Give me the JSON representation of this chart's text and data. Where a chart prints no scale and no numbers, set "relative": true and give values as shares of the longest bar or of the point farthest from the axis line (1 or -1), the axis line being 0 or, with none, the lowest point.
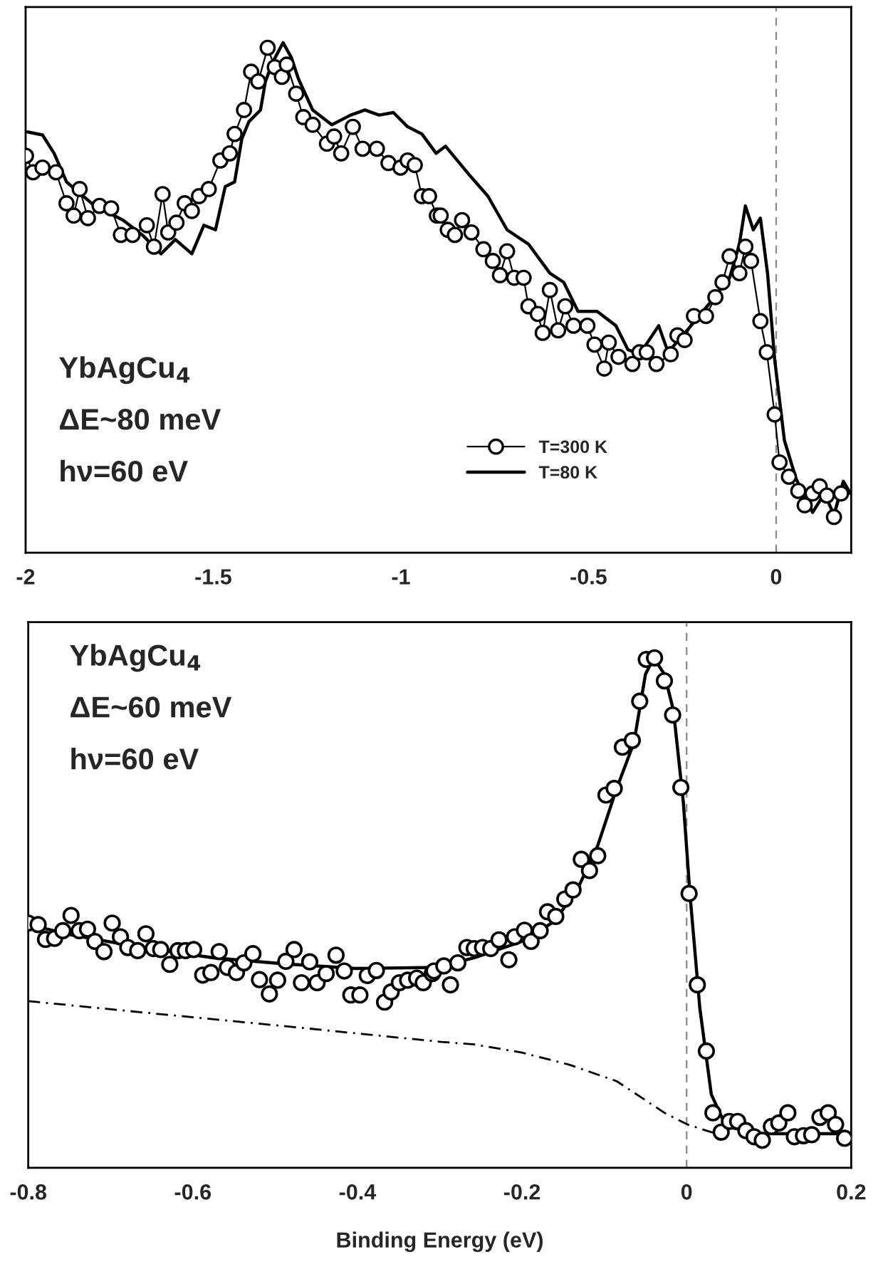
{
  "chart_data": [
    {
      "type": "line",
      "relative": true,
      "xlim": [
        -2,
        0.2
      ],
      "xticks": [
        -2,
        -1.5,
        -1,
        -0.5,
        0
      ],
      "legend": "bottom",
      "annotations": [
        "YbAgCu$_{4}$",
        "ΔE~80 meV",
        "hν=60 eV"
      ],
      "ref_lines": [
        {
          "axis": "x",
          "value": 0,
          "color": "#888888",
          "line_style": "dashed"
        }
      ],
      "series": [
        {
          "name": "T=300 K",
          "color": "#000000",
          "marker": "circle",
          "line_style": "solid",
          "x": [
            -1.999,
            -1.98,
            -1.955,
            -1.919,
            -1.891,
            -1.872,
            -1.856,
            -1.834,
            -1.803,
            -1.772,
            -1.746,
            -1.715,
            -1.677,
            -1.658,
            -1.635,
            -1.62,
            -1.598,
            -1.576,
            -1.557,
            -1.538,
            -1.512,
            -1.481,
            -1.456,
            -1.443,
            -1.418,
            -1.399,
            -1.38,
            -1.355,
            -1.336,
            -1.317,
            -1.304,
            -1.279,
            -1.26,
            -1.235,
            -1.197,
            -1.178,
            -1.159,
            -1.128,
            -1.102,
            -1.064,
            -1.033,
            -1.001,
            -0.982,
            -0.963,
            -0.944,
            -0.925,
            -0.904,
            -0.894,
            -0.875,
            -0.856,
            -0.837,
            -0.812,
            -0.78,
            -0.755,
            -0.736,
            -0.717,
            -0.698,
            -0.673,
            -0.66,
            -0.635,
            -0.622,
            -0.603,
            -0.581,
            -0.562,
            -0.54,
            -0.503,
            -0.484,
            -0.458,
            -0.446,
            -0.42,
            -0.383,
            -0.364,
            -0.345,
            -0.319,
            -0.281,
            -0.263,
            -0.244,
            -0.219,
            -0.187,
            -0.162,
            -0.143,
            -0.124,
            -0.098,
            -0.082,
            -0.067,
            -0.042,
            -0.025,
            -0.004,
            0.009,
            0.034,
            0.059,
            0.076,
            0.097,
            0.116,
            0.135,
            0.154,
            0.173
          ],
          "values": [
            0.778,
            0.746,
            0.755,
            0.746,
            0.685,
            0.661,
            0.713,
            0.656,
            0.68,
            0.675,
            0.623,
            0.623,
            0.642,
            0.6,
            0.703,
            0.628,
            0.647,
            0.685,
            0.67,
            0.699,
            0.713,
            0.769,
            0.783,
            0.821,
            0.868,
            0.943,
            0.924,
            0.99,
            0.952,
            0.933,
            0.957,
            0.9,
            0.854,
            0.839,
            0.802,
            0.816,
            0.783,
            0.835,
            0.792,
            0.792,
            0.764,
            0.755,
            0.769,
            0.76,
            0.699,
            0.699,
            0.661,
            0.661,
            0.633,
            0.623,
            0.652,
            0.628,
            0.595,
            0.572,
            0.544,
            0.591,
            0.539,
            0.539,
            0.483,
            0.468,
            0.431,
            0.515,
            0.436,
            0.483,
            0.445,
            0.445,
            0.408,
            0.361,
            0.412,
            0.384,
            0.37,
            0.393,
            0.393,
            0.37,
            0.389,
            0.426,
            0.417,
            0.464,
            0.464,
            0.501,
            0.53,
            0.581,
            0.548,
            0.6,
            0.572,
            0.454,
            0.393,
            0.271,
            0.177,
            0.149,
            0.121,
            0.093,
            0.116,
            0.13,
            0.112,
            0.07,
            0.116
          ]
        },
        {
          "name": "T=80 K",
          "color": "#000000",
          "marker": "none",
          "line_style": "solid",
          "x": [
            -1.995,
            -1.955,
            -1.924,
            -1.891,
            -1.816,
            -1.74,
            -1.689,
            -1.639,
            -1.601,
            -1.557,
            -1.525,
            -1.494,
            -1.468,
            -1.443,
            -1.424,
            -1.405,
            -1.374,
            -1.361,
            -1.342,
            -1.314,
            -1.292,
            -1.273,
            -1.235,
            -1.184,
            -1.134,
            -1.096,
            -1.058,
            -1.02,
            -0.982,
            -0.944,
            -0.906,
            -0.881,
            -0.818,
            -0.768,
            -0.717,
            -0.66,
            -0.603,
            -0.566,
            -0.528,
            -0.477,
            -0.427,
            -0.395,
            -0.364,
            -0.313,
            -0.288,
            -0.237,
            -0.174,
            -0.124,
            -0.098,
            -0.082,
            -0.061,
            -0.042,
            -0.023,
            -0.004,
            0.022,
            0.053,
            0.097,
            0.129,
            0.154,
            0.179,
            0.198
          ],
          "values": [
            0.825,
            0.819,
            0.783,
            0.727,
            0.68,
            0.652,
            0.623,
            0.586,
            0.614,
            0.586,
            0.642,
            0.633,
            0.718,
            0.727,
            0.811,
            0.845,
            0.868,
            0.924,
            0.961,
            1.0,
            0.971,
            0.929,
            0.868,
            0.839,
            0.858,
            0.868,
            0.858,
            0.863,
            0.835,
            0.821,
            0.783,
            0.797,
            0.741,
            0.699,
            0.633,
            0.605,
            0.548,
            0.53,
            0.473,
            0.473,
            0.445,
            0.398,
            0.389,
            0.445,
            0.393,
            0.436,
            0.492,
            0.539,
            0.605,
            0.68,
            0.633,
            0.656,
            0.548,
            0.379,
            0.22,
            0.145,
            0.079,
            0.116,
            0.074,
            0.14,
            0.116
          ]
        }
      ]
    },
    {
      "type": "line",
      "relative": true,
      "xlim": [
        -0.8,
        0.2
      ],
      "xticks": [
        -0.8,
        -0.6,
        -0.4,
        -0.2,
        0,
        0.2
      ],
      "xlabel": "Binding Energy (eV)",
      "annotations": [
        "YbAgCu$_{4}$",
        "ΔE~60 meV",
        "hν=60 eV"
      ],
      "ref_lines": [
        {
          "axis": "x",
          "value": 0,
          "color": "#888888",
          "line_style": "dashed"
        }
      ],
      "series": [
        {
          "type": "line",
          "color": "#000000",
          "line_style": "dashdot",
          "x": [
            -0.8,
            -0.662,
            -0.489,
            -0.298,
            -0.258,
            -0.2,
            -0.142,
            -0.085,
            -0.056,
            -0.027,
            0.001,
            0.03,
            0.042
          ],
          "values": [
            0.327,
            0.305,
            0.278,
            0.247,
            0.242,
            0.226,
            0.202,
            0.17,
            0.139,
            0.108,
            0.085,
            0.07,
            0.067
          ]
        },
        {
          "type": "line",
          "color": "#000000",
          "line_style": "solid",
          "x": [
            -0.8,
            -0.748,
            -0.662,
            -0.575,
            -0.489,
            -0.402,
            -0.304,
            -0.258,
            -0.2,
            -0.16,
            -0.131,
            -0.108,
            -0.085,
            -0.064,
            -0.05,
            -0.04,
            -0.027,
            -0.016,
            -0.004,
            0.004,
            0.016,
            0.03,
            0.048,
            0.092,
            0.2
          ],
          "values": [
            0.477,
            0.457,
            0.432,
            0.412,
            0.4,
            0.391,
            0.393,
            0.412,
            0.444,
            0.484,
            0.552,
            0.632,
            0.744,
            0.834,
            0.968,
            1.0,
            0.968,
            0.897,
            0.717,
            0.538,
            0.314,
            0.144,
            0.081,
            0.067,
            0.067
          ]
        },
        {
          "type": "scatter",
          "color": "#000000",
          "marker": "circle",
          "x": [
            -0.8,
            -0.788,
            -0.779,
            -0.768,
            -0.758,
            -0.748,
            -0.738,
            -0.728,
            -0.719,
            -0.708,
            -0.698,
            -0.688,
            -0.679,
            -0.667,
            -0.657,
            -0.648,
            -0.639,
            -0.628,
            -0.618,
            -0.609,
            -0.599,
            -0.588,
            -0.578,
            -0.568,
            -0.558,
            -0.547,
            -0.538,
            -0.527,
            -0.519,
            -0.507,
            -0.497,
            -0.487,
            -0.477,
            -0.468,
            -0.458,
            -0.449,
            -0.438,
            -0.426,
            -0.416,
            -0.408,
            -0.397,
            -0.388,
            -0.377,
            -0.367,
            -0.359,
            -0.349,
            -0.339,
            -0.328,
            -0.32,
            -0.309,
            -0.307,
            -0.295,
            -0.287,
            -0.278,
            -0.267,
            -0.258,
            -0.248,
            -0.238,
            -0.228,
            -0.216,
            -0.209,
            -0.197,
            -0.189,
            -0.178,
            -0.169,
            -0.159,
            -0.148,
            -0.138,
            -0.128,
            -0.118,
            -0.108,
            -0.098,
            -0.088,
            -0.078,
            -0.066,
            -0.057,
            -0.049,
            -0.039,
            -0.027,
            -0.017,
            -0.007,
            0.003,
            0.013,
            0.024,
            0.032,
            0.042,
            0.052,
            0.062,
            0.072,
            0.082,
            0.092,
            0.103,
            0.112,
            0.123,
            0.131,
            0.142,
            0.152,
            0.162,
            0.172,
            0.181,
            0.192
          ],
          "values": [
            0.48,
            0.477,
            0.448,
            0.45,
            0.465,
            0.495,
            0.465,
            0.468,
            0.444,
            0.424,
            0.48,
            0.453,
            0.432,
            0.426,
            0.459,
            0.43,
            0.428,
            0.399,
            0.426,
            0.426,
            0.428,
            0.378,
            0.383,
            0.424,
            0.393,
            0.383,
            0.402,
            0.42,
            0.369,
            0.341,
            0.368,
            0.405,
            0.428,
            0.363,
            0.404,
            0.363,
            0.381,
            0.417,
            0.386,
            0.339,
            0.339,
            0.377,
            0.387,
            0.325,
            0.345,
            0.363,
            0.368,
            0.372,
            0.363,
            0.381,
            0.386,
            0.396,
            0.359,
            0.402,
            0.432,
            0.43,
            0.432,
            0.43,
            0.447,
            0.408,
            0.453,
            0.466,
            0.444,
            0.465,
            0.502,
            0.493,
            0.527,
            0.545,
            0.605,
            0.583,
            0.612,
            0.731,
            0.744,
            0.825,
            0.838,
            0.915,
            0.997,
            1.0,
            0.955,
            0.888,
            0.746,
            0.538,
            0.359,
            0.229,
            0.108,
            0.07,
            0.091,
            0.091,
            0.073,
            0.061,
            0.054,
            0.081,
            0.088,
            0.108,
            0.061,
            0.063,
            0.065,
            0.099,
            0.108,
            0.085,
            0.058
          ]
        }
      ]
    }
  ]
}
